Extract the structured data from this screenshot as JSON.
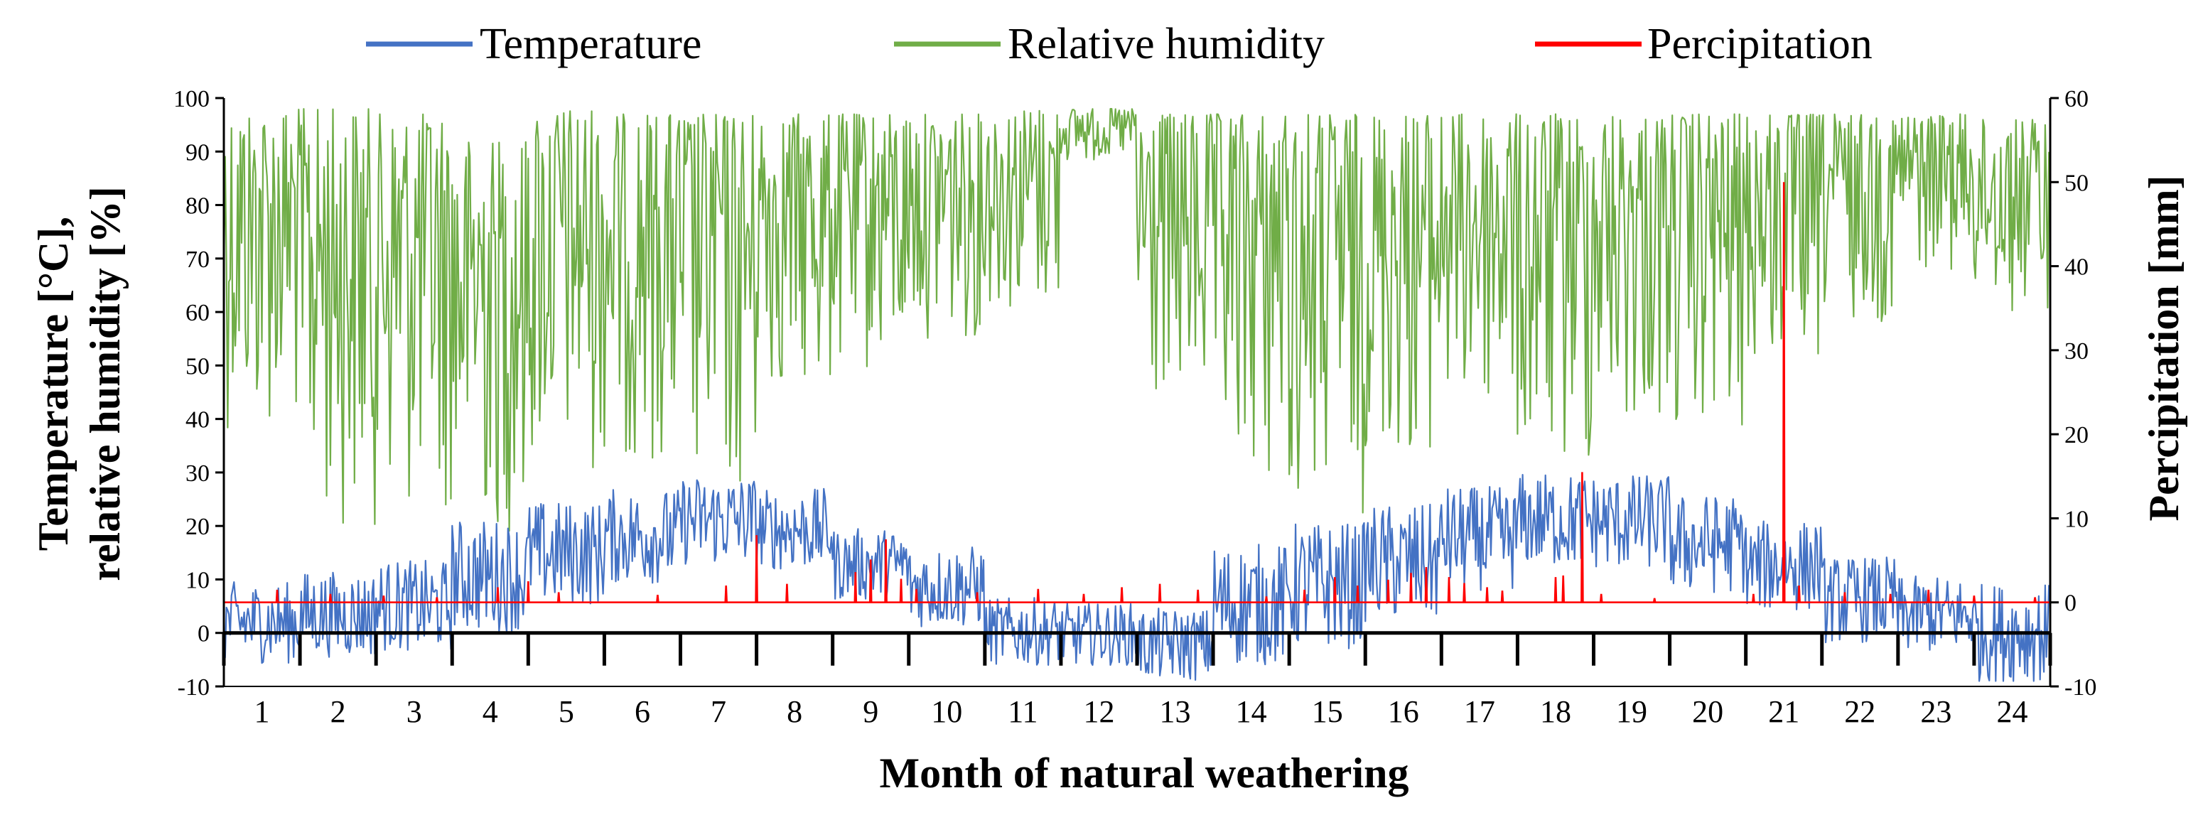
{
  "chart_data": {
    "type": "line",
    "title": "",
    "xlabel": "Month of natural weathering",
    "ylabel": "Temperature [°C],\nrelative humidity [%]",
    "ylabel_lines": [
      "Temperature [°C],",
      "relative humidity [%]"
    ],
    "y2label": "Percipitation [mm]",
    "ylim": [
      -10,
      100
    ],
    "y2lim": [
      -10,
      60
    ],
    "yticks": [
      "-10",
      "0",
      "10",
      "20",
      "30",
      "40",
      "50",
      "60",
      "70",
      "80",
      "90",
      "100"
    ],
    "y2ticks": [
      "-10",
      "0",
      "10",
      "20",
      "30",
      "40",
      "50",
      "60"
    ],
    "categories": [
      "1",
      "2",
      "3",
      "4",
      "5",
      "6",
      "7",
      "8",
      "9",
      "10",
      "11",
      "12",
      "13",
      "14",
      "15",
      "16",
      "17",
      "18",
      "19",
      "20",
      "21",
      "22",
      "23",
      "24"
    ],
    "xlim": [
      0.5,
      24.5
    ],
    "legend_position": "top",
    "grid": false,
    "colors": {
      "temperature": "#4472C4",
      "humidity": "#70AD47",
      "precipitation": "#FF0000",
      "axis": "#000000"
    },
    "series": [
      {
        "name": "Temperature",
        "axis": "left",
        "color": "#4472C4",
        "month_mean": [
          4,
          6,
          8,
          13,
          17,
          20,
          24,
          20,
          14,
          10,
          1,
          0,
          -1,
          7,
          11,
          15,
          19,
          23,
          22,
          19,
          14,
          8,
          5,
          1
        ],
        "month_min": [
          -6,
          -5,
          -4,
          0,
          5,
          9,
          12,
          12,
          6,
          1,
          -6,
          -6,
          -9,
          -6,
          -3,
          2,
          8,
          12,
          12,
          7,
          4,
          -2,
          -4,
          -9
        ],
        "month_max": [
          12,
          14,
          16,
          25,
          28,
          30,
          32,
          30,
          22,
          19,
          9,
          8,
          7,
          21,
          25,
          28,
          31,
          33,
          33,
          29,
          24,
          17,
          13,
          13
        ]
      },
      {
        "name": "Relative humidity",
        "axis": "left",
        "color": "#70AD47",
        "month_min": [
          38,
          20,
          22,
          18,
          30,
          32,
          24,
          45,
          48,
          55,
          60,
          88,
          40,
          28,
          22,
          32,
          40,
          30,
          38,
          36,
          48,
          58,
          68,
          60
        ],
        "month_max": [
          98,
          98,
          97,
          92,
          98,
          97,
          97,
          97,
          97,
          97,
          98,
          98,
          97,
          97,
          97,
          97,
          97,
          97,
          97,
          97,
          97,
          97,
          97,
          96
        ]
      },
      {
        "name": "Percipitation",
        "axis": "right",
        "color": "#FF0000",
        "baseline": 0,
        "events": [
          {
            "x": 1.2,
            "value": 1.5
          },
          {
            "x": 1.9,
            "value": 1.0
          },
          {
            "x": 2.6,
            "value": 0.8
          },
          {
            "x": 3.3,
            "value": 0.6
          },
          {
            "x": 4.1,
            "value": 1.8
          },
          {
            "x": 4.5,
            "value": 2.5
          },
          {
            "x": 4.9,
            "value": 1.2
          },
          {
            "x": 6.2,
            "value": 0.9
          },
          {
            "x": 7.1,
            "value": 2.0
          },
          {
            "x": 7.5,
            "value": 8.0
          },
          {
            "x": 7.9,
            "value": 2.2
          },
          {
            "x": 8.8,
            "value": 3.6
          },
          {
            "x": 9.0,
            "value": 5.1
          },
          {
            "x": 9.2,
            "value": 7.5
          },
          {
            "x": 9.4,
            "value": 2.8
          },
          {
            "x": 9.6,
            "value": 1.6
          },
          {
            "x": 10.4,
            "value": 1.2
          },
          {
            "x": 11.2,
            "value": 1.6
          },
          {
            "x": 11.8,
            "value": 1.0
          },
          {
            "x": 12.3,
            "value": 1.8
          },
          {
            "x": 12.8,
            "value": 2.2
          },
          {
            "x": 13.3,
            "value": 1.5
          },
          {
            "x": 14.2,
            "value": 0.7
          },
          {
            "x": 14.7,
            "value": 1.5
          },
          {
            "x": 15.1,
            "value": 3.0
          },
          {
            "x": 15.4,
            "value": 2.0
          },
          {
            "x": 15.8,
            "value": 2.7
          },
          {
            "x": 16.1,
            "value": 3.5
          },
          {
            "x": 16.3,
            "value": 4.2
          },
          {
            "x": 16.6,
            "value": 3.0
          },
          {
            "x": 16.8,
            "value": 2.3
          },
          {
            "x": 17.1,
            "value": 1.8
          },
          {
            "x": 17.3,
            "value": 1.4
          },
          {
            "x": 18.0,
            "value": 3.0
          },
          {
            "x": 18.1,
            "value": 3.2
          },
          {
            "x": 18.35,
            "value": 15.5
          },
          {
            "x": 18.6,
            "value": 1.0
          },
          {
            "x": 19.3,
            "value": 0.5
          },
          {
            "x": 20.6,
            "value": 1.0
          },
          {
            "x": 21.0,
            "value": 50.0
          },
          {
            "x": 21.2,
            "value": 2.0
          },
          {
            "x": 21.8,
            "value": 1.2
          },
          {
            "x": 22.4,
            "value": 1.0
          },
          {
            "x": 22.9,
            "value": 1.5
          },
          {
            "x": 23.5,
            "value": 0.8
          },
          {
            "x": 24.3,
            "value": 0.6
          }
        ]
      }
    ]
  }
}
